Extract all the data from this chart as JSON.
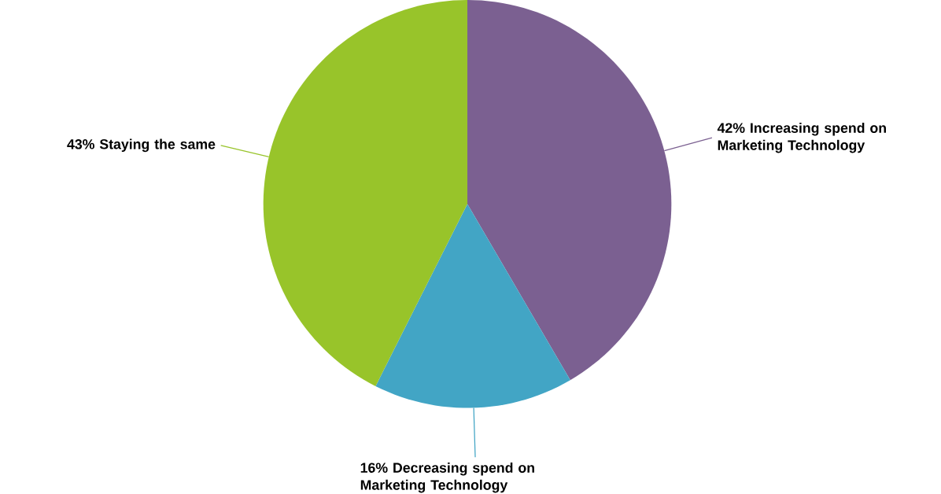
{
  "chart_data": {
    "type": "pie",
    "categories": [
      "Increasing spend on Marketing Technology",
      "Decreasing spend on Marketing Technology",
      "Staying the same"
    ],
    "values": [
      42,
      16,
      43
    ],
    "value_labels": [
      "42%",
      "16%",
      "43%"
    ],
    "colors": [
      "#7b6091",
      "#42a5c5",
      "#98c42a"
    ]
  }
}
